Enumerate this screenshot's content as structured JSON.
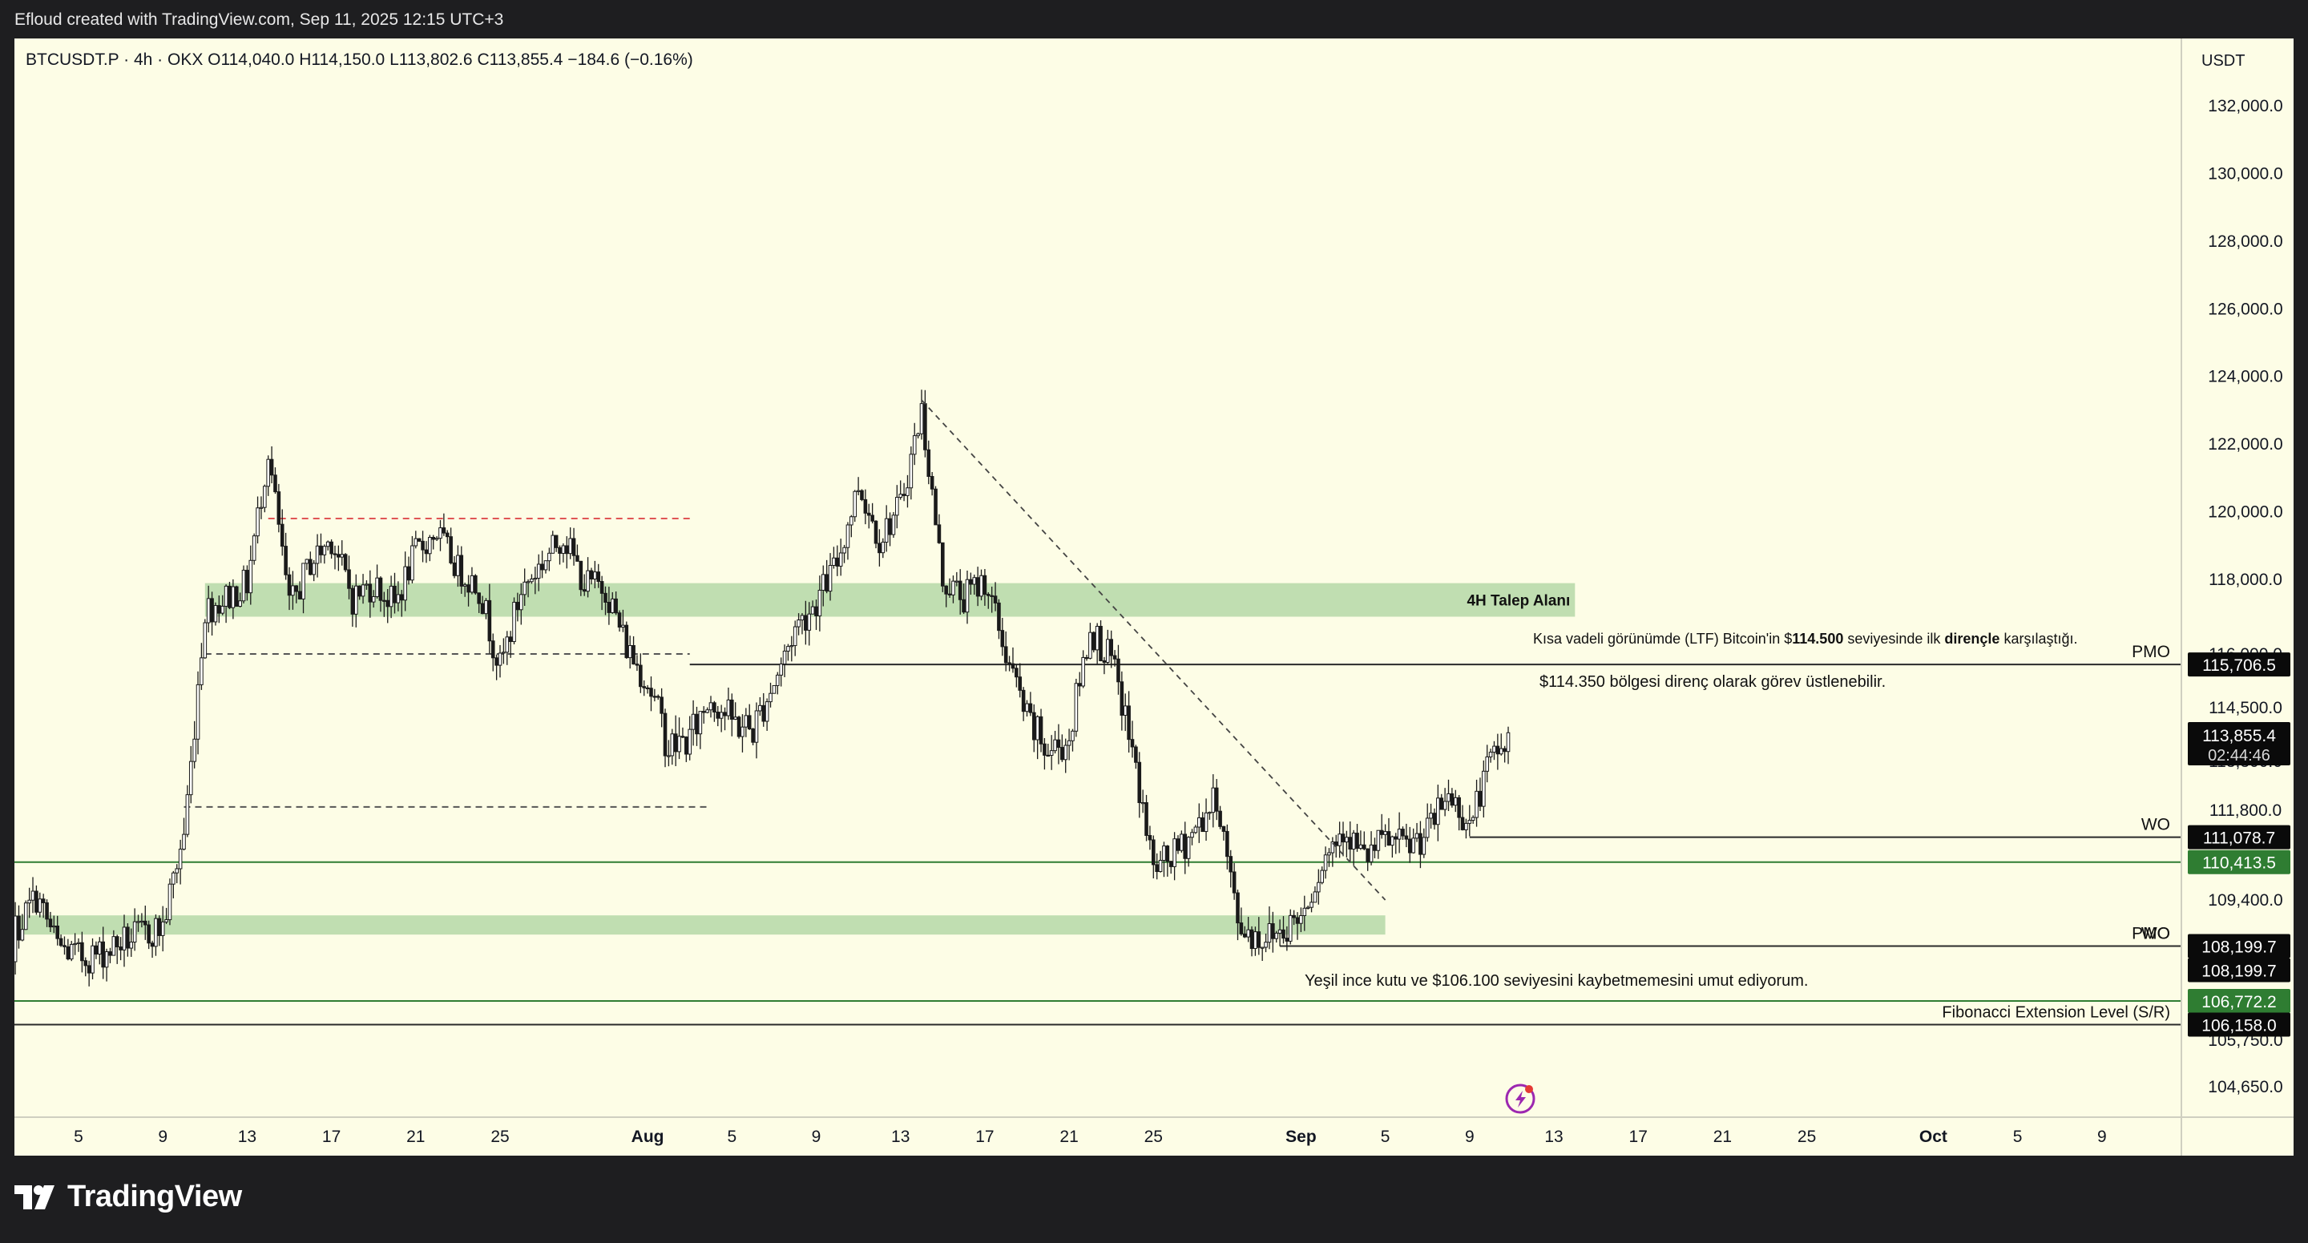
{
  "header": {
    "caption": "Efloud created with TradingView.com, Sep 11, 2025 12:15 UTC+3"
  },
  "branding": {
    "logo_text": "TradingView",
    "logo_icon": "tradingview-logo-icon"
  },
  "colors": {
    "background": "#fdfde6",
    "candle": "#1a1a1a",
    "zone": "#b5d8a7",
    "resistance_dash": "#e05555",
    "support_dash": "#555555",
    "line": "#2a2a2a",
    "label_dark": "#0a0a0a",
    "label_green": "#2f7d32",
    "flash_icon": "#9c27b0"
  },
  "chart_data": {
    "type": "candlestick",
    "symbol_line": "BTCUSDT.P · 4h · OKX   O114,040.0   H114,150.0   L113,802.6   C113,855.4   −184.6 (−0.16%)",
    "currency": "USDT",
    "y_axis": {
      "labels": [
        "132,000.0",
        "130,000.0",
        "128,000.0",
        "126,000.0",
        "124,000.0",
        "122,000.0",
        "120,000.0",
        "118,000.0",
        "116,000.0",
        "114,500.0",
        "113,300.0",
        "111,800.0",
        "109,400.0",
        "105,750.0",
        "104,650.0"
      ],
      "label_values": [
        132000,
        130000,
        128000,
        126000,
        124000,
        122000,
        120000,
        118000,
        116000,
        114500,
        113300,
        111800,
        109400,
        105750,
        104650
      ]
    },
    "x_axis": {
      "labels": [
        "5",
        "9",
        "13",
        "17",
        "21",
        "25",
        "Aug",
        "5",
        "9",
        "13",
        "17",
        "21",
        "25",
        "Sep",
        "5",
        "9",
        "13",
        "17",
        "21",
        "25",
        "Oct",
        "5",
        "9"
      ],
      "label_dates": [
        "2025-07-05",
        "2025-07-09",
        "2025-07-13",
        "2025-07-17",
        "2025-07-21",
        "2025-07-25",
        "2025-08-01",
        "2025-08-05",
        "2025-08-09",
        "2025-08-13",
        "2025-08-17",
        "2025-08-21",
        "2025-08-25",
        "2025-09-01",
        "2025-09-05",
        "2025-09-09",
        "2025-09-13",
        "2025-09-17",
        "2025-09-21",
        "2025-09-25",
        "2025-10-01",
        "2025-10-05",
        "2025-10-09"
      ],
      "bold": [
        "Aug",
        "Sep",
        "Oct"
      ]
    },
    "price_path": [
      [
        "2025-07-01",
        106300
      ],
      [
        "2025-07-02",
        108600
      ],
      [
        "2025-07-03",
        109500
      ],
      [
        "2025-07-04",
        108200
      ],
      [
        "2025-07-05",
        107900
      ],
      [
        "2025-07-06",
        108000
      ],
      [
        "2025-07-07",
        108300
      ],
      [
        "2025-07-08",
        108500
      ],
      [
        "2025-07-09",
        108700
      ],
      [
        "2025-07-10",
        111200
      ],
      [
        "2025-07-11",
        117200
      ],
      [
        "2025-07-12",
        117500
      ],
      [
        "2025-07-13",
        117900
      ],
      [
        "2025-07-14",
        121800
      ],
      [
        "2025-07-15",
        117200
      ],
      [
        "2025-07-16",
        118500
      ],
      [
        "2025-07-17",
        119200
      ],
      [
        "2025-07-18",
        117500
      ],
      [
        "2025-07-19",
        117900
      ],
      [
        "2025-07-20",
        117300
      ],
      [
        "2025-07-21",
        118800
      ],
      [
        "2025-07-22",
        119400
      ],
      [
        "2025-07-23",
        118300
      ],
      [
        "2025-07-24",
        117800
      ],
      [
        "2025-07-25",
        115600
      ],
      [
        "2025-07-26",
        117700
      ],
      [
        "2025-07-27",
        118500
      ],
      [
        "2025-07-28",
        119300
      ],
      [
        "2025-07-29",
        117900
      ],
      [
        "2025-07-30",
        117800
      ],
      [
        "2025-07-31",
        116200
      ],
      [
        "2025-08-01",
        115200
      ],
      [
        "2025-08-02",
        113600
      ],
      [
        "2025-08-03",
        113800
      ],
      [
        "2025-08-04",
        114800
      ],
      [
        "2025-08-05",
        114200
      ],
      [
        "2025-08-06",
        114000
      ],
      [
        "2025-08-07",
        115200
      ],
      [
        "2025-08-08",
        116700
      ],
      [
        "2025-08-09",
        117400
      ],
      [
        "2025-08-10",
        118500
      ],
      [
        "2025-08-11",
        120800
      ],
      [
        "2025-08-12",
        119200
      ],
      [
        "2025-08-13",
        120200
      ],
      [
        "2025-08-14",
        123000
      ],
      [
        "2025-08-15",
        118000
      ],
      [
        "2025-08-16",
        117500
      ],
      [
        "2025-08-17",
        118000
      ],
      [
        "2025-08-18",
        116000
      ],
      [
        "2025-08-19",
        114200
      ],
      [
        "2025-08-20",
        113500
      ],
      [
        "2025-08-21",
        113800
      ],
      [
        "2025-08-22",
        116700
      ],
      [
        "2025-08-23",
        115800
      ],
      [
        "2025-08-24",
        113500
      ],
      [
        "2025-08-25",
        110200
      ],
      [
        "2025-08-26",
        110600
      ],
      [
        "2025-08-27",
        111300
      ],
      [
        "2025-08-28",
        112200
      ],
      [
        "2025-08-29",
        108800
      ],
      [
        "2025-08-30",
        108400
      ],
      [
        "2025-08-31",
        108600
      ],
      [
        "2025-09-01",
        109000
      ],
      [
        "2025-09-02",
        110400
      ],
      [
        "2025-09-03",
        111400
      ],
      [
        "2025-09-04",
        110500
      ],
      [
        "2025-09-05",
        111000
      ],
      [
        "2025-09-06",
        110800
      ],
      [
        "2025-09-07",
        111200
      ],
      [
        "2025-09-08",
        112300
      ],
      [
        "2025-09-09",
        111400
      ],
      [
        "2025-09-10",
        113300
      ],
      [
        "2025-09-11",
        113855
      ]
    ],
    "last_candle": {
      "date": "2025-09-11",
      "open": 114040.0,
      "high": 114150.0,
      "low": 113802.6,
      "close": 113855.4,
      "change": -184.6,
      "change_pct": -0.16
    },
    "zones": [
      {
        "name": "demand-zone-4h",
        "label": "4H Talep Alanı",
        "from_date": "2025-07-11",
        "to_date": "2025-09-14",
        "low": 117000,
        "high": 117900
      },
      {
        "name": "support-zone-lower",
        "label": "",
        "from_date": "2025-06-30",
        "to_date": "2025-09-05",
        "low": 108500,
        "high": 109000
      }
    ],
    "dashed_lines": [
      {
        "name": "resistance-dashed",
        "value": 119800,
        "from_date": "2025-07-14",
        "to_date": "2025-08-03",
        "color": "resistance_dash"
      },
      {
        "name": "mid-dashed",
        "value": 116000,
        "from_date": "2025-07-11",
        "to_date": "2025-08-03",
        "color": "support_dash"
      },
      {
        "name": "low-dashed",
        "value": 111900,
        "from_date": "2025-07-10",
        "to_date": "2025-08-04",
        "color": "support_dash"
      }
    ],
    "trendline": {
      "from": [
        "2025-08-14",
        123300
      ],
      "to": [
        "2025-09-05",
        109400
      ]
    },
    "levels": [
      {
        "name": "pmo-upper",
        "value": 115706.5,
        "label": "115,706.5",
        "tag": "PMO",
        "from_date": "2025-08-03",
        "style": "dark"
      },
      {
        "name": "wo-upper",
        "value": 111078.7,
        "label": "111,078.7",
        "tag": "WO",
        "from_date": "2025-09-09",
        "style": "dark"
      },
      {
        "name": "support-level",
        "value": 110413.5,
        "label": "110,413.5",
        "tag": "",
        "from_date": "2025-06-30",
        "style": "green"
      },
      {
        "name": "pmo-wo-lower",
        "value": 108199.7,
        "label": "108,199.7",
        "tag": "PMO",
        "from_date": "2025-08-31",
        "style": "dark"
      },
      {
        "name": "pmo-wo-lower-2",
        "value": 108199.7,
        "label": "108,199.7",
        "tag": "",
        "from_date": "",
        "style": "dark-only"
      },
      {
        "name": "fib-support",
        "value": 106772.2,
        "label": "106,772.2",
        "tag": "",
        "from_date": "2025-06-30",
        "style": "green"
      },
      {
        "name": "fib-extension",
        "value": 106158.0,
        "label": "106,158.0",
        "tag": "Fibonacci Extension Level (S/R)",
        "from_date": "2025-06-30",
        "style": "dark"
      }
    ],
    "current_price": {
      "value": 113855.4,
      "label": "113,855.4",
      "countdown": "02:44:46"
    },
    "annotations": [
      {
        "name": "ltf-resistance-note",
        "parts": [
          "Kısa vadeli görünümde (LTF) Bitcoin'in $",
          "114.500",
          " seviyesinde ilk ",
          "dirençle",
          " karşılaştığı."
        ]
      },
      {
        "name": "resistance-role-note",
        "text": "$114.350 bölgesi direnç olarak görev üstlenebilir."
      },
      {
        "name": "support-hope-note",
        "text": "Yeşil ince kutu ve $106.100 seviyesini kaybetmemesini umut ediyorum."
      }
    ]
  }
}
